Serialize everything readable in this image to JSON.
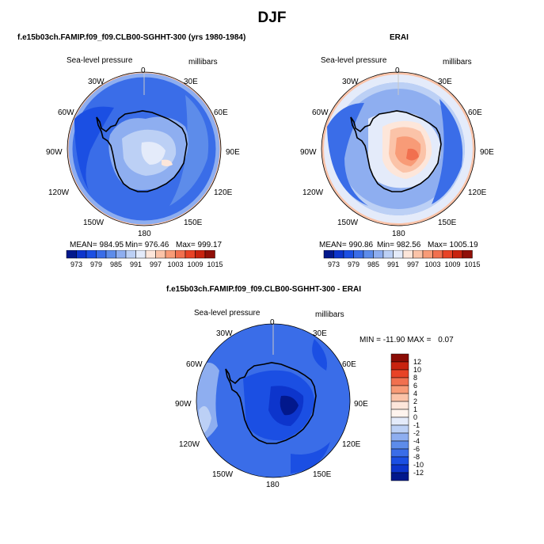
{
  "figure": {
    "title": "DJF"
  },
  "panels": {
    "model": {
      "title": "f.e15b03ch.FAMIP.f09_f09.CLB00-SGHHT-300 (yrs 1980-1984)",
      "left_label": "Sea-level pressure",
      "right_label": "millibars",
      "stats": {
        "mean": "MEAN= 984.95",
        "min": "Min= 976.46",
        "max": "Max= 999.17"
      }
    },
    "obs": {
      "title": "ERAI",
      "left_label": "Sea-level pressure",
      "right_label": "millibars",
      "stats": {
        "mean": "MEAN= 990.86",
        "min": "Min= 982.56",
        "max": "Max= 1005.19"
      }
    },
    "diff": {
      "title": "f.e15b03ch.FAMIP.f09_f09.CLB00-SGHHT-300 - ERAI",
      "left_label": "Sea-level pressure",
      "right_label": "millibars",
      "stats": {
        "min_label": "MIN =",
        "min": "-11.90",
        "max_label": "MAX =",
        "max": "0.07"
      }
    }
  },
  "longitude_labels": [
    "0",
    "30E",
    "60E",
    "90E",
    "120E",
    "150E",
    "180",
    "150W",
    "120W",
    "90W",
    "60W",
    "30W"
  ],
  "abs_colorbar": {
    "levels": [
      "973",
      "979",
      "985",
      "991",
      "997",
      "1003",
      "1009",
      "1015"
    ],
    "colors": [
      "#02188c",
      "#0d35cc",
      "#1b4fe3",
      "#3a6de8",
      "#5d8cea",
      "#8eaef0",
      "#bcd0f5",
      "#e4ebfa",
      "#fde6da",
      "#fbc3a8",
      "#f89b77",
      "#f1704f",
      "#e84326",
      "#c8230f",
      "#900f08"
    ]
  },
  "diff_colorbar": {
    "levels": [
      "12",
      "10",
      "8",
      "6",
      "4",
      "2",
      "1",
      "0",
      "-1",
      "-2",
      "-4",
      "-6",
      "-8",
      "-10",
      "-12"
    ],
    "colors": [
      "#8a0c05",
      "#c8230f",
      "#e84326",
      "#f1704f",
      "#f89b77",
      "#fbc3a8",
      "#fde6da",
      "#fff4ee",
      "#e4ebfa",
      "#bcd0f5",
      "#8eaef0",
      "#5d8cea",
      "#3a6de8",
      "#1b4fe3",
      "#0d35cc",
      "#02188c"
    ]
  },
  "colors": {
    "land_outline": "#000000",
    "background": "#ffffff"
  }
}
